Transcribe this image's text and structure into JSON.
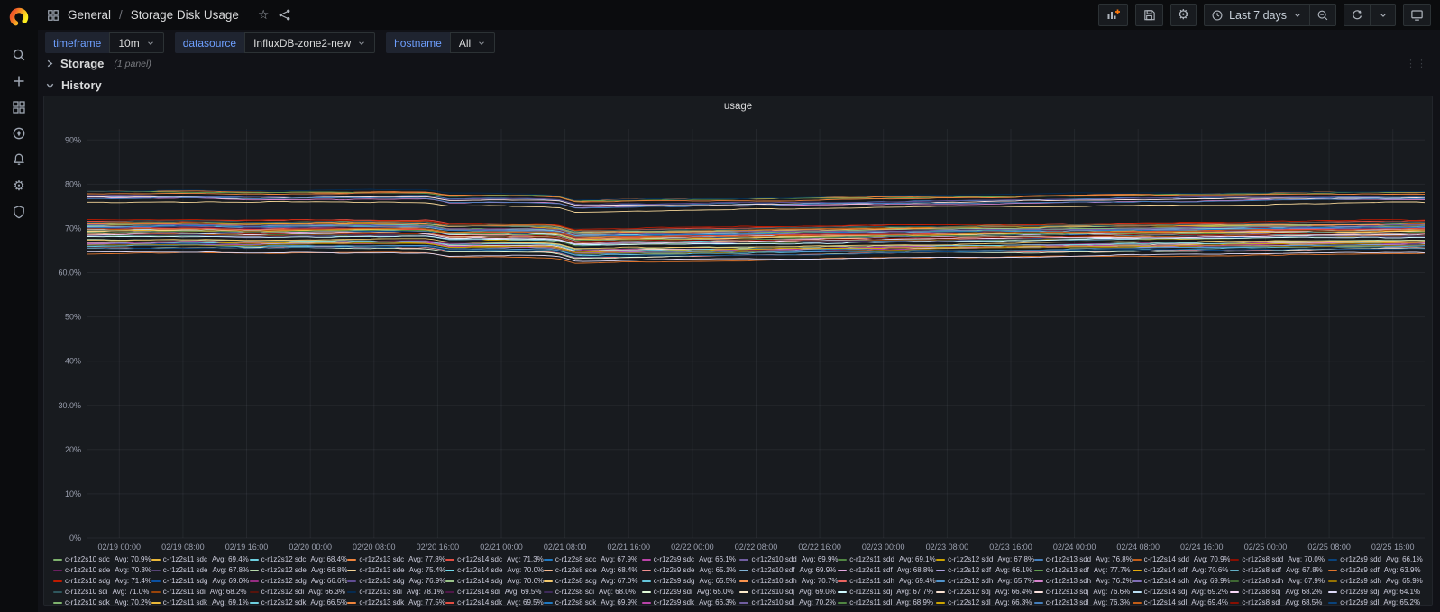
{
  "navbar": {
    "breadcrumb_section": "General",
    "breadcrumb_separator": "/",
    "breadcrumb_title": "Storage Disk Usage",
    "time_range_label": "Last 7 days"
  },
  "icons": {
    "sidebar": [
      "search",
      "add",
      "dashboards",
      "explore",
      "alerting",
      "configuration",
      "server-admin"
    ],
    "breadcrumb": [
      "apps-grid",
      "star",
      "share"
    ],
    "toolbar": [
      "add-panel",
      "save-dashboard",
      "dashboard-settings",
      "clock",
      "caret-down",
      "zoom-out",
      "refresh",
      "refresh-interval-caret",
      "cycle-view-mode"
    ],
    "star_glyph": "☆",
    "gear_glyph": "⚙",
    "drag_glyph": "⋮⋮"
  },
  "colors": {
    "accent_orange": "#ff780a",
    "background": "#111217",
    "panel_background": "#181b1f",
    "variable_label_blue": "#6e9fff",
    "axis_text": "#9a9fae",
    "gridline": "rgba(204,204,220,0.07)"
  },
  "variables": [
    {
      "label": "timeframe",
      "value": "10m"
    },
    {
      "label": "datasource",
      "value": "InfluxDB-zone2-new"
    },
    {
      "label": "hostname",
      "value": "All"
    }
  ],
  "rows": {
    "storage_title": "Storage",
    "storage_count": "(1 panel)",
    "history_title": "History"
  },
  "chart_data": {
    "type": "line",
    "title": "usage",
    "xlabel": "",
    "ylabel": "",
    "ylim": [
      0,
      92.5
    ],
    "grid": true,
    "legend_position": "bottom",
    "avg_prefix": "Avg:",
    "y_ticks": [
      {
        "value": 90,
        "label": "90%"
      },
      {
        "value": 80,
        "label": "80%"
      },
      {
        "value": 70,
        "label": "70%"
      },
      {
        "value": 60,
        "label": "60.0%"
      },
      {
        "value": 50,
        "label": "50%"
      },
      {
        "value": 40,
        "label": "40%"
      },
      {
        "value": 30,
        "label": "30.0%"
      },
      {
        "value": 20,
        "label": "20%"
      },
      {
        "value": 10,
        "label": "10%"
      },
      {
        "value": 0,
        "label": "0%"
      }
    ],
    "x_total_hours": 168,
    "x_tick_hours": [
      4,
      12,
      20,
      28,
      36,
      44,
      52,
      60,
      68,
      76,
      84,
      92,
      100,
      108,
      116,
      124,
      132,
      140,
      148,
      156,
      164
    ],
    "x_tick_labels": [
      "02/19 00:00",
      "02/19 08:00",
      "02/19 16:00",
      "02/20 00:00",
      "02/20 08:00",
      "02/20 16:00",
      "02/21 00:00",
      "02/21 08:00",
      "02/21 16:00",
      "02/22 00:00",
      "02/22 08:00",
      "02/22 16:00",
      "02/23 00:00",
      "02/23 08:00",
      "02/23 16:00",
      "02/24 00:00",
      "02/24 08:00",
      "02/24 16:00",
      "02/25 00:00",
      "02/25 08:00",
      "02/25 16:00"
    ],
    "trend_offsets": {
      "description": "shared % offset from each series average along normalized time: flat-high until 02/20 16:00 step down, dip at 02/21 08:00, then slow recovery through 02/25",
      "points": [
        [
          0.0,
          0.45
        ],
        [
          0.08,
          0.55
        ],
        [
          0.12,
          0.35
        ],
        [
          0.16,
          0.5
        ],
        [
          0.22,
          0.55
        ],
        [
          0.255,
          0.5
        ],
        [
          0.27,
          -0.3
        ],
        [
          0.3,
          -0.25
        ],
        [
          0.34,
          -0.3
        ],
        [
          0.352,
          -0.5
        ],
        [
          0.365,
          -1.6
        ],
        [
          0.4,
          -1.45
        ],
        [
          0.46,
          -1.25
        ],
        [
          0.53,
          -1.0
        ],
        [
          0.6,
          -0.72
        ],
        [
          0.68,
          -0.45
        ],
        [
          0.76,
          -0.2
        ],
        [
          0.84,
          0.0
        ],
        [
          0.92,
          0.2
        ],
        [
          1.0,
          0.4
        ]
      ]
    },
    "palette": [
      "#7EB26D",
      "#EAB839",
      "#6ED0E0",
      "#EF843C",
      "#E24D42",
      "#1F78C1",
      "#BA43A9",
      "#705DA0",
      "#508642",
      "#CCA300",
      "#447EBC",
      "#C15C17",
      "#890F02",
      "#0A437C",
      "#6D1F62",
      "#584477",
      "#B7DBAB",
      "#F4D598",
      "#70DBED",
      "#F9BA8F",
      "#F29191",
      "#82B5D8",
      "#E5A8E2",
      "#AEA2E0",
      "#629E51",
      "#E5AC0E",
      "#64B0C8",
      "#E0752D",
      "#BF1B00",
      "#0A50A1",
      "#962D82",
      "#614D93",
      "#9AC48A",
      "#F2C96D",
      "#65C5DB",
      "#F9934E",
      "#EA6460",
      "#5195CE",
      "#D683CE",
      "#806EB7",
      "#3F6833",
      "#967302",
      "#2F575E",
      "#99440A",
      "#58140C",
      "#052B51",
      "#511749",
      "#3F2B5B",
      "#E0F9D7",
      "#FCEACA",
      "#CFFAFF",
      "#F9E2D2",
      "#FCE2DE",
      "#BADFF4",
      "#F9D9F9",
      "#DEDAF7"
    ],
    "series": [
      {
        "name": "c-r1z2s10 sdc",
        "avg": 70.9
      },
      {
        "name": "c-r1z2s11 sdc",
        "avg": 69.4
      },
      {
        "name": "c-r1z2s12 sdc",
        "avg": 68.4
      },
      {
        "name": "c-r1z2s13 sdc",
        "avg": 77.8
      },
      {
        "name": "c-r1z2s14 sdc",
        "avg": 71.3
      },
      {
        "name": "c-r1z2s8 sdc",
        "avg": 67.9
      },
      {
        "name": "c-r1z2s9 sdc",
        "avg": 66.1
      },
      {
        "name": "c-r1z2s10 sdd",
        "avg": 69.9
      },
      {
        "name": "c-r1z2s11 sdd",
        "avg": 69.1
      },
      {
        "name": "c-r1z2s12 sdd",
        "avg": 67.8
      },
      {
        "name": "c-r1z2s13 sdd",
        "avg": 76.8
      },
      {
        "name": "c-r1z2s14 sdd",
        "avg": 70.9
      },
      {
        "name": "c-r1z2s8 sdd",
        "avg": 70.0
      },
      {
        "name": "c-r1z2s9 sdd",
        "avg": 66.1
      },
      {
        "name": "c-r1z2s10 sde",
        "avg": 70.3
      },
      {
        "name": "c-r1z2s11 sde",
        "avg": 67.8
      },
      {
        "name": "c-r1z2s12 sde",
        "avg": 66.8
      },
      {
        "name": "c-r1z2s13 sde",
        "avg": 75.4
      },
      {
        "name": "c-r1z2s14 sde",
        "avg": 70.0
      },
      {
        "name": "c-r1z2s8 sde",
        "avg": 68.4
      },
      {
        "name": "c-r1z2s9 sde",
        "avg": 65.1
      },
      {
        "name": "c-r1z2s10 sdf",
        "avg": 69.9
      },
      {
        "name": "c-r1z2s11 sdf",
        "avg": 68.8
      },
      {
        "name": "c-r1z2s12 sdf",
        "avg": 66.1
      },
      {
        "name": "c-r1z2s13 sdf",
        "avg": 77.7
      },
      {
        "name": "c-r1z2s14 sdf",
        "avg": 70.6
      },
      {
        "name": "c-r1z2s8 sdf",
        "avg": 67.8
      },
      {
        "name": "c-r1z2s9 sdf",
        "avg": 63.9
      },
      {
        "name": "c-r1z2s10 sdg",
        "avg": 71.4
      },
      {
        "name": "c-r1z2s11 sdg",
        "avg": 69.0
      },
      {
        "name": "c-r1z2s12 sdg",
        "avg": 66.6
      },
      {
        "name": "c-r1z2s13 sdg",
        "avg": 76.9
      },
      {
        "name": "c-r1z2s14 sdg",
        "avg": 70.6
      },
      {
        "name": "c-r1z2s8 sdg",
        "avg": 67.0
      },
      {
        "name": "c-r1z2s9 sdg",
        "avg": 65.5
      },
      {
        "name": "c-r1z2s10 sdh",
        "avg": 70.7
      },
      {
        "name": "c-r1z2s11 sdh",
        "avg": 69.4
      },
      {
        "name": "c-r1z2s12 sdh",
        "avg": 65.7
      },
      {
        "name": "c-r1z2s13 sdh",
        "avg": 76.2
      },
      {
        "name": "c-r1z2s14 sdh",
        "avg": 69.9
      },
      {
        "name": "c-r1z2s8 sdh",
        "avg": 67.9
      },
      {
        "name": "c-r1z2s9 sdh",
        "avg": 65.9
      },
      {
        "name": "c-r1z2s10 sdi",
        "avg": 71.0
      },
      {
        "name": "c-r1z2s11 sdi",
        "avg": 68.2
      },
      {
        "name": "c-r1z2s12 sdi",
        "avg": 66.3
      },
      {
        "name": "c-r1z2s13 sdi",
        "avg": 78.1
      },
      {
        "name": "c-r1z2s14 sdi",
        "avg": 69.5
      },
      {
        "name": "c-r1z2s8 sdi",
        "avg": 68.0
      },
      {
        "name": "c-r1z2s9 sdi",
        "avg": 65.0
      },
      {
        "name": "c-r1z2s10 sdj",
        "avg": 69.0
      },
      {
        "name": "c-r1z2s11 sdj",
        "avg": 67.7
      },
      {
        "name": "c-r1z2s12 sdj",
        "avg": 66.4
      },
      {
        "name": "c-r1z2s13 sdj",
        "avg": 76.6
      },
      {
        "name": "c-r1z2s14 sdj",
        "avg": 69.2
      },
      {
        "name": "c-r1z2s8 sdj",
        "avg": 68.2
      },
      {
        "name": "c-r1z2s9 sdj",
        "avg": 64.1
      },
      {
        "name": "c-r1z2s10 sdk",
        "avg": 70.2
      },
      {
        "name": "c-r1z2s11 sdk",
        "avg": 69.1
      },
      {
        "name": "c-r1z2s12 sdk",
        "avg": 66.5
      },
      {
        "name": "c-r1z2s13 sdk",
        "avg": 77.5
      },
      {
        "name": "c-r1z2s14 sdk",
        "avg": 69.5
      },
      {
        "name": "c-r1z2s8 sdk",
        "avg": 69.9
      },
      {
        "name": "c-r1z2s9 sdk",
        "avg": 66.3
      },
      {
        "name": "c-r1z2s10 sdl",
        "avg": 70.2
      },
      {
        "name": "c-r1z2s11 sdl",
        "avg": 68.9
      },
      {
        "name": "c-r1z2s12 sdl",
        "avg": 66.3
      },
      {
        "name": "c-r1z2s13 sdl",
        "avg": 76.3
      },
      {
        "name": "c-r1z2s14 sdl",
        "avg": 69.4
      },
      {
        "name": "c-r1z2s8 sdl",
        "avg": 68.5
      },
      {
        "name": "c-r1z2s9 sdl",
        "avg": 65.2
      }
    ]
  }
}
